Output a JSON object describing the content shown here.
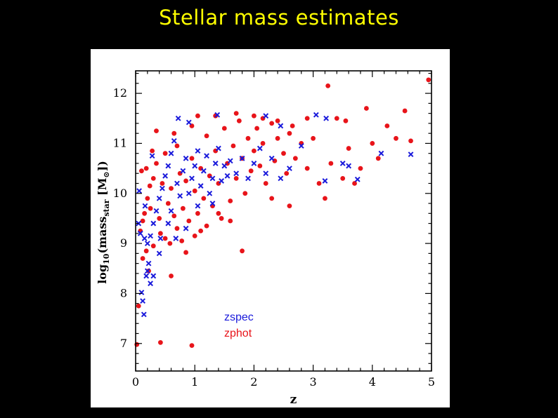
{
  "slide": {
    "title": "Stellar mass estimates"
  },
  "chart_data": {
    "type": "scatter",
    "title": "Stellar mass estimates",
    "xlabel": "z",
    "ylabel": "log10(mass_star [M_sun])",
    "ylabel_parts": {
      "main": "log",
      "sub1": "10",
      "mid": "(mass",
      "sub2": "star",
      "open": " [M",
      "sub3": "⊙",
      "close": "])"
    },
    "xlim": [
      0,
      5
    ],
    "ylim": [
      6.45,
      12.45
    ],
    "xticks": [
      0,
      1,
      2,
      3,
      4,
      5
    ],
    "yticks": [
      7,
      8,
      9,
      10,
      11,
      12
    ],
    "xtick_labels": [
      "0",
      "1",
      "2",
      "3",
      "4",
      "5"
    ],
    "ytick_labels": [
      "7",
      "8",
      "9",
      "10",
      "11",
      "12"
    ],
    "legend": {
      "position": "bottom-left",
      "entries": [
        "zspec",
        "zphot"
      ],
      "colors": [
        "#1a1adb",
        "#e8141a"
      ]
    },
    "series": [
      {
        "name": "zphot",
        "marker": "circle",
        "color": "#e8141a",
        "points": [
          [
            0.02,
            6.98
          ],
          [
            0.42,
            7.02
          ],
          [
            0.95,
            6.96
          ],
          [
            0.05,
            7.75
          ],
          [
            0.12,
            8.7
          ],
          [
            0.18,
            8.85
          ],
          [
            0.22,
            8.45
          ],
          [
            0.15,
            9.6
          ],
          [
            0.08,
            9.25
          ],
          [
            0.1,
            10.45
          ],
          [
            0.2,
            9.9
          ],
          [
            0.25,
            9.7
          ],
          [
            0.3,
            10.3
          ],
          [
            0.35,
            10.6
          ],
          [
            0.4,
            9.5
          ],
          [
            0.45,
            10.2
          ],
          [
            0.5,
            10.8
          ],
          [
            0.55,
            9.8
          ],
          [
            0.6,
            10.1
          ],
          [
            0.65,
            9.55
          ],
          [
            0.7,
            10.95
          ],
          [
            0.75,
            10.4
          ],
          [
            0.8,
            9.7
          ],
          [
            0.85,
            10.25
          ],
          [
            0.9,
            9.45
          ],
          [
            0.95,
            10.7
          ],
          [
            1.0,
            10.05
          ],
          [
            1.05,
            9.6
          ],
          [
            1.1,
            10.5
          ],
          [
            1.15,
            9.9
          ],
          [
            1.2,
            11.15
          ],
          [
            1.25,
            10.35
          ],
          [
            1.3,
            9.75
          ],
          [
            1.35,
            10.85
          ],
          [
            1.4,
            10.2
          ],
          [
            1.45,
            9.5
          ],
          [
            1.5,
            11.3
          ],
          [
            1.55,
            10.6
          ],
          [
            1.6,
            9.85
          ],
          [
            1.65,
            10.95
          ],
          [
            1.7,
            10.3
          ],
          [
            1.75,
            11.45
          ],
          [
            1.8,
            10.7
          ],
          [
            1.85,
            10.0
          ],
          [
            1.9,
            11.1
          ],
          [
            1.95,
            10.45
          ],
          [
            2.0,
            10.85
          ],
          [
            2.05,
            11.3
          ],
          [
            2.1,
            10.55
          ],
          [
            2.15,
            11.0
          ],
          [
            2.2,
            10.2
          ],
          [
            2.3,
            11.4
          ],
          [
            2.35,
            10.65
          ],
          [
            2.4,
            11.1
          ],
          [
            2.5,
            10.8
          ],
          [
            2.55,
            10.4
          ],
          [
            2.6,
            11.2
          ],
          [
            2.7,
            10.7
          ],
          [
            2.8,
            11.0
          ],
          [
            2.9,
            10.5
          ],
          [
            3.0,
            11.1
          ],
          [
            3.1,
            10.2
          ],
          [
            3.2,
            9.9
          ],
          [
            3.25,
            12.15
          ],
          [
            3.3,
            10.6
          ],
          [
            3.4,
            11.5
          ],
          [
            3.5,
            10.3
          ],
          [
            3.55,
            11.45
          ],
          [
            3.6,
            10.9
          ],
          [
            3.7,
            10.2
          ],
          [
            3.8,
            10.5
          ],
          [
            3.9,
            11.7
          ],
          [
            4.0,
            11.0
          ],
          [
            4.1,
            10.7
          ],
          [
            4.25,
            11.35
          ],
          [
            4.4,
            11.1
          ],
          [
            4.55,
            11.65
          ],
          [
            4.65,
            11.05
          ],
          [
            4.95,
            12.27
          ],
          [
            0.85,
            8.82
          ],
          [
            1.8,
            8.85
          ],
          [
            0.6,
            8.35
          ],
          [
            0.3,
            8.95
          ],
          [
            0.5,
            9.1
          ],
          [
            0.7,
            9.3
          ],
          [
            1.0,
            9.15
          ],
          [
            1.2,
            9.35
          ],
          [
            1.4,
            9.6
          ],
          [
            0.12,
            9.45
          ],
          [
            0.28,
            10.85
          ],
          [
            0.35,
            11.25
          ],
          [
            0.65,
            11.2
          ],
          [
            0.95,
            11.35
          ],
          [
            1.05,
            11.55
          ],
          [
            1.35,
            11.55
          ],
          [
            1.7,
            11.6
          ],
          [
            2.0,
            11.55
          ],
          [
            2.15,
            11.5
          ],
          [
            2.4,
            11.45
          ],
          [
            2.65,
            11.35
          ],
          [
            2.9,
            11.5
          ],
          [
            0.18,
            10.5
          ],
          [
            0.24,
            10.15
          ],
          [
            0.42,
            9.2
          ],
          [
            0.58,
            9.0
          ],
          [
            0.78,
            9.05
          ],
          [
            1.1,
            9.25
          ],
          [
            1.6,
            9.45
          ],
          [
            2.3,
            9.9
          ],
          [
            2.6,
            9.75
          ]
        ]
      },
      {
        "name": "zspec",
        "marker": "x",
        "color": "#1a1adb",
        "points": [
          [
            0.12,
            7.85
          ],
          [
            0.14,
            7.58
          ],
          [
            0.1,
            8.02
          ],
          [
            0.18,
            8.35
          ],
          [
            0.22,
            8.6
          ],
          [
            0.2,
            9.0
          ],
          [
            0.25,
            9.15
          ],
          [
            0.3,
            9.4
          ],
          [
            0.35,
            9.65
          ],
          [
            0.4,
            9.9
          ],
          [
            0.45,
            10.1
          ],
          [
            0.5,
            10.35
          ],
          [
            0.55,
            10.55
          ],
          [
            0.6,
            10.8
          ],
          [
            0.65,
            11.05
          ],
          [
            0.7,
            10.2
          ],
          [
            0.75,
            9.95
          ],
          [
            0.8,
            10.45
          ],
          [
            0.85,
            10.7
          ],
          [
            0.9,
            10.0
          ],
          [
            0.95,
            10.3
          ],
          [
            1.0,
            10.55
          ],
          [
            1.05,
            10.85
          ],
          [
            1.1,
            10.15
          ],
          [
            1.15,
            10.45
          ],
          [
            1.2,
            10.75
          ],
          [
            1.25,
            10.0
          ],
          [
            1.3,
            10.3
          ],
          [
            1.35,
            10.6
          ],
          [
            1.4,
            10.9
          ],
          [
            1.45,
            10.25
          ],
          [
            1.5,
            10.55
          ],
          [
            1.55,
            10.35
          ],
          [
            1.6,
            10.65
          ],
          [
            1.7,
            10.4
          ],
          [
            1.8,
            10.7
          ],
          [
            1.9,
            10.3
          ],
          [
            2.0,
            10.6
          ],
          [
            2.1,
            10.9
          ],
          [
            2.2,
            10.4
          ],
          [
            2.3,
            10.7
          ],
          [
            2.45,
            10.3
          ],
          [
            2.6,
            10.5
          ],
          [
            2.8,
            10.95
          ],
          [
            3.2,
            10.25
          ],
          [
            3.5,
            10.6
          ],
          [
            3.6,
            10.55
          ],
          [
            3.75,
            10.28
          ],
          [
            4.15,
            10.8
          ],
          [
            4.65,
            10.78
          ],
          [
            0.72,
            11.5
          ],
          [
            0.9,
            11.42
          ],
          [
            1.38,
            11.57
          ],
          [
            2.2,
            11.55
          ],
          [
            2.45,
            11.35
          ],
          [
            3.05,
            11.57
          ],
          [
            3.22,
            11.5
          ],
          [
            0.16,
            9.75
          ],
          [
            0.08,
            9.2
          ],
          [
            0.06,
            10.05
          ],
          [
            0.28,
            10.75
          ],
          [
            0.42,
            9.1
          ],
          [
            0.55,
            9.4
          ],
          [
            0.68,
            9.1
          ],
          [
            0.85,
            9.3
          ],
          [
            0.3,
            8.35
          ],
          [
            0.2,
            8.45
          ],
          [
            0.4,
            8.8
          ],
          [
            0.25,
            8.2
          ],
          [
            0.6,
            9.65
          ],
          [
            1.05,
            9.75
          ],
          [
            1.3,
            9.8
          ],
          [
            0.15,
            9.1
          ],
          [
            0.05,
            9.4
          ]
        ]
      }
    ]
  }
}
